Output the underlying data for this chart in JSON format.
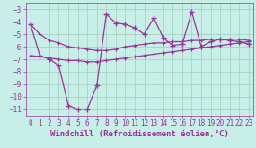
{
  "title": "",
  "xlabel": "Windchill (Refroidissement éolien,°C)",
  "background_color": "#c8eee8",
  "grid_color": "#a0ccbb",
  "line_color": "#993399",
  "x": [
    0,
    1,
    2,
    3,
    4,
    5,
    6,
    7,
    8,
    9,
    10,
    11,
    12,
    13,
    14,
    15,
    16,
    17,
    18,
    19,
    20,
    21,
    22,
    23
  ],
  "y_main": [
    -4.2,
    -6.7,
    -7.0,
    -7.5,
    -10.7,
    -11.0,
    -11.0,
    -9.1,
    -3.4,
    -4.1,
    -4.2,
    -4.5,
    -5.0,
    -3.7,
    -5.3,
    -5.9,
    -5.8,
    -3.2,
    -6.0,
    -5.6,
    -5.4,
    -5.5,
    -5.6,
    -5.8
  ],
  "y_upper_trend": [
    -4.2,
    -5.0,
    -5.5,
    -5.7,
    -6.0,
    -6.1,
    -6.2,
    -6.3,
    -6.3,
    -6.2,
    -6.0,
    -5.9,
    -5.8,
    -5.7,
    -5.7,
    -5.6,
    -5.6,
    -5.5,
    -5.5,
    -5.4,
    -5.4,
    -5.4,
    -5.4,
    -5.5
  ],
  "y_lower_trend": [
    -6.7,
    -6.8,
    -6.9,
    -7.0,
    -7.1,
    -7.1,
    -7.2,
    -7.2,
    -7.1,
    -7.0,
    -6.9,
    -6.8,
    -6.7,
    -6.6,
    -6.5,
    -6.4,
    -6.3,
    -6.2,
    -6.1,
    -6.0,
    -5.9,
    -5.8,
    -5.7,
    -5.6
  ],
  "ylim": [
    -11.5,
    -2.5
  ],
  "xlim": [
    -0.5,
    23.5
  ],
  "yticks": [
    -11,
    -10,
    -9,
    -8,
    -7,
    -6,
    -5,
    -4,
    -3
  ],
  "xticks": [
    0,
    1,
    2,
    3,
    4,
    5,
    6,
    7,
    8,
    9,
    10,
    11,
    12,
    13,
    14,
    15,
    16,
    17,
    18,
    19,
    20,
    21,
    22,
    23
  ],
  "font_color": "#993399",
  "tick_fontsize": 5.5,
  "xlabel_fontsize": 6.5
}
